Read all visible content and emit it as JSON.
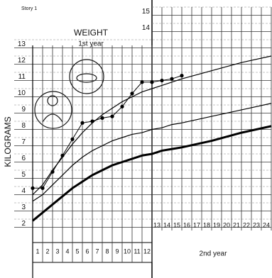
{
  "chart_data": {
    "type": "line",
    "label": "Story 1",
    "title": "WEIGHT",
    "subtitle": "1st year",
    "ylabel": "KILOGRAMS",
    "xlabel2": "2nd year",
    "x": [
      0,
      1,
      2,
      3,
      4,
      5,
      6,
      7,
      8,
      9,
      10,
      11,
      12,
      13,
      14,
      15,
      18,
      21,
      24
    ],
    "xlim": [
      0,
      24
    ],
    "xticks": [
      1,
      2,
      3,
      4,
      5,
      6,
      7,
      8,
      9,
      10,
      11,
      12,
      13,
      14,
      15,
      16,
      17,
      18,
      19,
      20,
      21,
      22,
      23,
      24
    ],
    "ylim": [
      1.5,
      15.5
    ],
    "yticks": [
      2,
      3,
      4,
      5,
      6,
      7,
      8,
      9,
      10,
      11,
      12,
      13,
      14,
      15
    ],
    "grid": true,
    "series": [
      {
        "color": "#000000",
        "width": 1.2,
        "values": [
          4.0,
          4.6,
          5.5,
          6.3,
          7.1,
          7.8,
          8.4,
          8.9,
          9.3,
          9.7,
          10.0,
          10.3,
          10.5,
          10.7,
          10.9,
          11.1,
          11.6,
          12.1,
          12.5
        ]
      },
      {
        "color": "#000000",
        "width": 1.2,
        "values": [
          3.6,
          4.0,
          4.6,
          5.2,
          5.8,
          6.3,
          6.7,
          7.0,
          7.3,
          7.5,
          7.7,
          7.8,
          8.0,
          8.1,
          8.3,
          8.4,
          8.8,
          9.2,
          9.6
        ]
      },
      {
        "color": "#000000",
        "width": 3,
        "values": [
          2.4,
          2.9,
          3.4,
          3.9,
          4.4,
          4.8,
          5.2,
          5.5,
          5.8,
          6.0,
          6.2,
          6.4,
          6.5,
          6.7,
          6.8,
          6.9,
          7.3,
          7.8,
          8.2
        ]
      },
      {
        "color": "#000000",
        "width": 1,
        "marker": true,
        "values": [
          4.4,
          4.4,
          5.4,
          6.4,
          7.4,
          8.4,
          8.5,
          8.7,
          8.8,
          9.4,
          10.2,
          10.9,
          10.9,
          11.0,
          11.1,
          11.3,
          null,
          null,
          null
        ]
      }
    ]
  }
}
